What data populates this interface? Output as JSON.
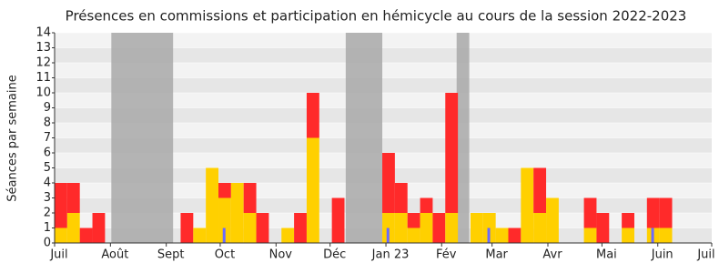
{
  "chart_data": {
    "type": "bar",
    "title": "Présences en commissions et participation en hémicycle au cours de la session 2022-2023",
    "y_label": "Séances par semaine",
    "xlim": [
      0,
      52.14
    ],
    "xticks": [
      {
        "value": 0,
        "label": "Juil"
      },
      {
        "value": 4.43,
        "label": "Août"
      },
      {
        "value": 8.86,
        "label": "Sept"
      },
      {
        "value": 13.14,
        "label": "Oct"
      },
      {
        "value": 17.57,
        "label": "Nov"
      },
      {
        "value": 21.86,
        "label": "Déc"
      },
      {
        "value": 26.29,
        "label": "Jan 23"
      },
      {
        "value": 30.71,
        "label": "Fév"
      },
      {
        "value": 34.71,
        "label": "Mar"
      },
      {
        "value": 39.14,
        "label": "Avr"
      },
      {
        "value": 43.43,
        "label": "Mai"
      },
      {
        "value": 47.86,
        "label": "Juin"
      },
      {
        "value": 52.14,
        "label": "Juil"
      }
    ],
    "ylim": [
      0,
      14
    ],
    "yticks": [
      0,
      1,
      2,
      3,
      4,
      5,
      6,
      7,
      8,
      9,
      10,
      11,
      12,
      13,
      14
    ],
    "grid": true,
    "vacations": [
      [
        4.5,
        9.4
      ],
      [
        23.1,
        26
      ],
      [
        31.9,
        32.9
      ]
    ],
    "vacation_color": "#a8a8a8",
    "series": [
      {
        "color": "#ffd000",
        "values": [
          1,
          2,
          0,
          0,
          0,
          0,
          0,
          0,
          0,
          0,
          0,
          1,
          5,
          3,
          4,
          2,
          0,
          0,
          1,
          0,
          7,
          0,
          0,
          0,
          0,
          0,
          2,
          2,
          1,
          2,
          0,
          2,
          0,
          2,
          2,
          1,
          0,
          5,
          2,
          3,
          0,
          0,
          1,
          0,
          0,
          1,
          0,
          1,
          1,
          0,
          0,
          0
        ]
      },
      {
        "color": "#ff2a2a",
        "values": [
          3,
          2,
          1,
          2,
          0,
          0,
          0,
          0,
          0,
          0,
          2,
          0,
          0,
          1,
          0,
          2,
          2,
          0,
          0,
          2,
          3,
          0,
          3,
          0,
          0,
          0,
          4,
          2,
          1,
          1,
          2,
          8,
          0,
          0,
          0,
          0,
          1,
          0,
          3,
          0,
          0,
          0,
          2,
          2,
          0,
          1,
          0,
          2,
          2,
          0,
          0,
          0
        ]
      }
    ],
    "marker_series": {
      "color": "#6a6aff",
      "values": [
        null,
        null,
        null,
        null,
        null,
        null,
        null,
        null,
        null,
        null,
        null,
        null,
        null,
        1,
        null,
        null,
        null,
        null,
        null,
        null,
        null,
        null,
        null,
        null,
        null,
        null,
        1,
        null,
        null,
        null,
        null,
        null,
        null,
        null,
        1,
        null,
        null,
        null,
        null,
        null,
        null,
        null,
        null,
        null,
        null,
        null,
        null,
        1,
        null,
        null,
        null,
        null
      ]
    }
  }
}
